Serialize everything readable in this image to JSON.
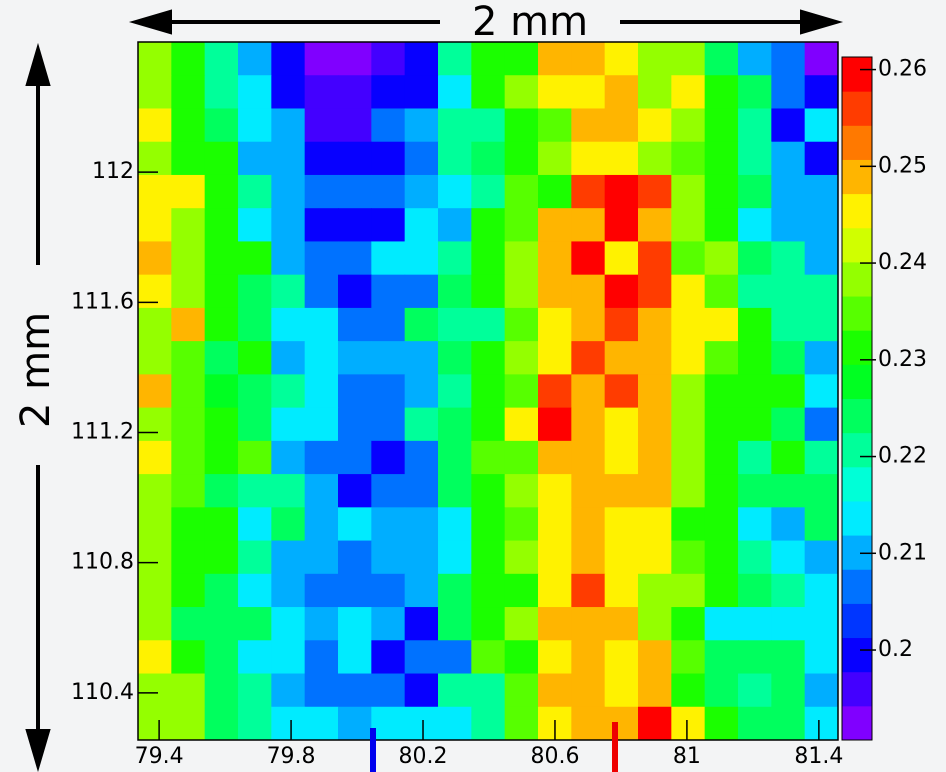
{
  "chart_data": {
    "type": "heatmap",
    "colormap": "rainbow",
    "annotations": [
      "2 mm",
      "2 mm"
    ],
    "xlim": [
      79.336,
      81.458
    ],
    "xticks": [
      79.4,
      79.8,
      80.2,
      80.6,
      81,
      81.4
    ],
    "ylim": [
      110.255,
      112.4
    ],
    "yticks": [
      110.4,
      110.8,
      111.2,
      111.6,
      112
    ],
    "zlim": [
      0.1907,
      0.2613
    ],
    "zticks": [
      0.2,
      0.21,
      0.22,
      0.23,
      0.24,
      0.25,
      0.26
    ],
    "z": [
      [
        0.24,
        0.23,
        0.22,
        0.21,
        0.2,
        0.193,
        0.193,
        0.196,
        0.198,
        0.22,
        0.23,
        0.232,
        0.25,
        0.25,
        0.245,
        0.24,
        0.238,
        0.225,
        0.21,
        0.205,
        0.193
      ],
      [
        0.24,
        0.23,
        0.22,
        0.215,
        0.2,
        0.195,
        0.195,
        0.198,
        0.2,
        0.215,
        0.23,
        0.24,
        0.245,
        0.245,
        0.25,
        0.24,
        0.245,
        0.23,
        0.225,
        0.205,
        0.2
      ],
      [
        0.245,
        0.232,
        0.225,
        0.215,
        0.21,
        0.195,
        0.195,
        0.205,
        0.21,
        0.22,
        0.22,
        0.232,
        0.235,
        0.25,
        0.25,
        0.245,
        0.238,
        0.232,
        0.22,
        0.2,
        0.215
      ],
      [
        0.24,
        0.23,
        0.23,
        0.21,
        0.21,
        0.2,
        0.198,
        0.2,
        0.205,
        0.22,
        0.225,
        0.232,
        0.24,
        0.245,
        0.245,
        0.24,
        0.235,
        0.23,
        0.22,
        0.21,
        0.198
      ],
      [
        0.245,
        0.245,
        0.23,
        0.222,
        0.21,
        0.205,
        0.205,
        0.205,
        0.21,
        0.215,
        0.22,
        0.235,
        0.232,
        0.255,
        0.26,
        0.255,
        0.24,
        0.23,
        0.225,
        0.21,
        0.21
      ],
      [
        0.245,
        0.238,
        0.232,
        0.215,
        0.21,
        0.2,
        0.2,
        0.2,
        0.215,
        0.21,
        0.23,
        0.235,
        0.25,
        0.25,
        0.26,
        0.25,
        0.24,
        0.232,
        0.215,
        0.21,
        0.21
      ],
      [
        0.25,
        0.24,
        0.232,
        0.23,
        0.21,
        0.205,
        0.205,
        0.215,
        0.215,
        0.22,
        0.23,
        0.24,
        0.25,
        0.26,
        0.245,
        0.255,
        0.235,
        0.238,
        0.225,
        0.22,
        0.21
      ],
      [
        0.245,
        0.24,
        0.23,
        0.225,
        0.22,
        0.205,
        0.198,
        0.205,
        0.205,
        0.225,
        0.232,
        0.238,
        0.25,
        0.25,
        0.26,
        0.255,
        0.245,
        0.235,
        0.22,
        0.22,
        0.22
      ],
      [
        0.24,
        0.25,
        0.232,
        0.225,
        0.215,
        0.215,
        0.205,
        0.205,
        0.225,
        0.222,
        0.22,
        0.235,
        0.245,
        0.25,
        0.255,
        0.25,
        0.245,
        0.245,
        0.232,
        0.22,
        0.22
      ],
      [
        0.24,
        0.235,
        0.225,
        0.232,
        0.21,
        0.215,
        0.21,
        0.21,
        0.21,
        0.225,
        0.23,
        0.24,
        0.245,
        0.255,
        0.25,
        0.25,
        0.245,
        0.235,
        0.23,
        0.225,
        0.21
      ],
      [
        0.25,
        0.235,
        0.228,
        0.225,
        0.222,
        0.215,
        0.205,
        0.208,
        0.21,
        0.222,
        0.23,
        0.235,
        0.255,
        0.25,
        0.255,
        0.25,
        0.24,
        0.23,
        0.23,
        0.232,
        0.215
      ],
      [
        0.24,
        0.235,
        0.232,
        0.225,
        0.215,
        0.215,
        0.205,
        0.208,
        0.22,
        0.225,
        0.232,
        0.245,
        0.26,
        0.25,
        0.245,
        0.25,
        0.24,
        0.232,
        0.23,
        0.225,
        0.205
      ],
      [
        0.245,
        0.235,
        0.232,
        0.235,
        0.21,
        0.205,
        0.205,
        0.198,
        0.205,
        0.225,
        0.235,
        0.235,
        0.25,
        0.25,
        0.245,
        0.25,
        0.24,
        0.232,
        0.22,
        0.232,
        0.22
      ],
      [
        0.24,
        0.235,
        0.225,
        0.22,
        0.22,
        0.21,
        0.198,
        0.205,
        0.205,
        0.225,
        0.232,
        0.24,
        0.245,
        0.25,
        0.25,
        0.25,
        0.24,
        0.23,
        0.225,
        0.225,
        0.225
      ],
      [
        0.24,
        0.232,
        0.23,
        0.215,
        0.225,
        0.21,
        0.215,
        0.21,
        0.21,
        0.215,
        0.23,
        0.235,
        0.245,
        0.25,
        0.245,
        0.245,
        0.232,
        0.232,
        0.215,
        0.21,
        0.225
      ],
      [
        0.24,
        0.232,
        0.232,
        0.22,
        0.21,
        0.21,
        0.205,
        0.21,
        0.21,
        0.215,
        0.232,
        0.24,
        0.245,
        0.25,
        0.245,
        0.245,
        0.235,
        0.232,
        0.222,
        0.215,
        0.21
      ],
      [
        0.24,
        0.23,
        0.225,
        0.215,
        0.21,
        0.205,
        0.205,
        0.205,
        0.21,
        0.225,
        0.23,
        0.232,
        0.245,
        0.255,
        0.245,
        0.24,
        0.238,
        0.232,
        0.225,
        0.222,
        0.215
      ],
      [
        0.24,
        0.225,
        0.225,
        0.225,
        0.215,
        0.21,
        0.215,
        0.21,
        0.2,
        0.225,
        0.232,
        0.24,
        0.25,
        0.25,
        0.25,
        0.24,
        0.232,
        0.215,
        0.215,
        0.215,
        0.215
      ],
      [
        0.245,
        0.232,
        0.225,
        0.215,
        0.215,
        0.205,
        0.215,
        0.2,
        0.205,
        0.205,
        0.235,
        0.23,
        0.245,
        0.25,
        0.245,
        0.25,
        0.235,
        0.225,
        0.225,
        0.225,
        0.215
      ],
      [
        0.24,
        0.24,
        0.225,
        0.22,
        0.21,
        0.205,
        0.205,
        0.205,
        0.2,
        0.22,
        0.22,
        0.235,
        0.25,
        0.25,
        0.245,
        0.25,
        0.232,
        0.225,
        0.22,
        0.225,
        0.21
      ],
      [
        0.24,
        0.24,
        0.225,
        0.22,
        0.215,
        0.215,
        0.21,
        0.215,
        0.215,
        0.215,
        0.22,
        0.235,
        0.245,
        0.25,
        0.25,
        0.26,
        0.245,
        0.232,
        0.225,
        0.225,
        0.215
      ]
    ]
  }
}
